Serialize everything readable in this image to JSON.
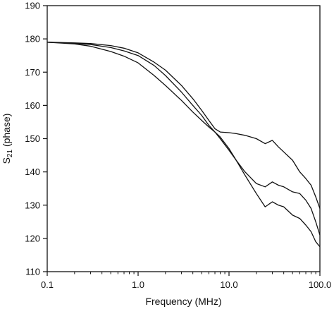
{
  "chart_data": {
    "type": "line",
    "title": "",
    "xlabel": "Frequency (MHz)",
    "ylabel": {
      "main": "S",
      "subscript": "21",
      "suffix": " (phase)"
    },
    "xscale": "log",
    "xlim": [
      0.1,
      100.0
    ],
    "ylim": [
      110,
      190
    ],
    "xticks": [
      {
        "value": 0.1,
        "label": "0.1"
      },
      {
        "value": 1.0,
        "label": "1.0"
      },
      {
        "value": 10.0,
        "label": "10.0"
      },
      {
        "value": 100.0,
        "label": "100.0"
      }
    ],
    "yticks": [
      110,
      120,
      130,
      140,
      150,
      160,
      170,
      180,
      190
    ],
    "grid": false,
    "legend": "none",
    "line_color": "#111111",
    "series": [
      {
        "x": [
          0.1,
          0.2,
          0.3,
          0.5,
          0.7,
          1.0,
          1.5,
          2.0,
          3.0,
          4.0,
          5.0,
          6.0,
          7.0,
          8.0,
          10.0,
          12.0,
          15.0,
          20.0,
          25.0,
          30.0,
          35.0,
          40.0,
          50.0,
          60.0,
          70.0,
          80.0,
          90.0,
          100.0
        ],
        "y": [
          179,
          178.8,
          178.6,
          178.0,
          177.2,
          175.8,
          173.0,
          170.6,
          166.0,
          162.0,
          158.5,
          155.5,
          153.0,
          152.0,
          151.8,
          151.5,
          151.0,
          150.0,
          148.5,
          149.5,
          147.5,
          146.0,
          143.5,
          140.0,
          138.0,
          136.0,
          132.5,
          129.0
        ]
      },
      {
        "x": [
          0.1,
          0.2,
          0.3,
          0.5,
          0.7,
          1.0,
          1.5,
          2.0,
          3.0,
          4.0,
          5.0,
          6.0,
          7.0,
          8.0,
          10.0,
          12.0,
          15.0,
          20.0,
          25.0,
          30.0,
          35.0,
          40.0,
          50.0,
          60.0,
          70.0,
          80.0,
          90.0,
          100.0
        ],
        "y": [
          179,
          178.7,
          178.3,
          177.4,
          176.4,
          175.0,
          172.0,
          169.0,
          164.0,
          160.0,
          157.0,
          154.0,
          152.0,
          150.0,
          146.5,
          143.5,
          140.0,
          136.5,
          135.5,
          137.0,
          136.0,
          135.5,
          134.0,
          133.5,
          131.5,
          129.0,
          125.0,
          121.0
        ]
      },
      {
        "x": [
          0.1,
          0.2,
          0.3,
          0.5,
          0.7,
          1.0,
          1.5,
          2.0,
          3.0,
          4.0,
          5.0,
          6.0,
          7.0,
          8.0,
          10.0,
          12.0,
          15.0,
          20.0,
          25.0,
          30.0,
          35.0,
          40.0,
          50.0,
          60.0,
          70.0,
          80.0,
          90.0,
          100.0
        ],
        "y": [
          179,
          178.5,
          177.8,
          176.2,
          174.8,
          172.8,
          169.0,
          166.0,
          161.5,
          158.0,
          155.5,
          153.5,
          152.0,
          150.5,
          147.0,
          143.5,
          139.0,
          133.5,
          129.5,
          131.0,
          130.0,
          129.5,
          127.0,
          126.0,
          124.0,
          122.0,
          119.0,
          117.5
        ]
      }
    ]
  }
}
